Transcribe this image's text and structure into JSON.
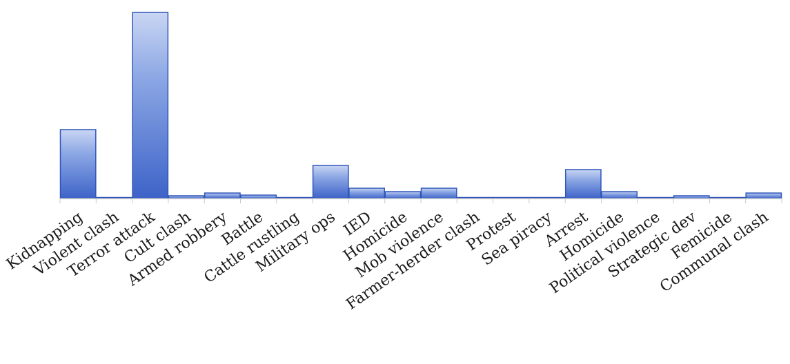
{
  "chart_data": {
    "type": "bar",
    "title": "",
    "xlabel": "",
    "ylabel": "",
    "categories": [
      "Kidnapping",
      "Violent clash",
      "Terror attack",
      "Cult clash",
      "Armed robbery",
      "Battle",
      "Cattle rustling",
      "Military ops",
      "IED",
      "Homicide",
      "Mob violence",
      "Farmer-herder clash",
      "Protest",
      "Sea piracy",
      "Arrest",
      "Homicide",
      "Political violence",
      "Strategic dev",
      "Femicide",
      "Communal clash"
    ],
    "values": [
      100,
      1,
      270,
      4,
      8,
      5,
      0,
      48,
      15,
      10,
      15,
      1,
      1,
      1,
      42,
      10,
      1,
      4,
      1,
      8
    ],
    "ylim": [
      0,
      270
    ],
    "grid": false,
    "legend": "none",
    "bar_color": "#5b7fd6",
    "bar_edge_color": "#2f55b8"
  }
}
